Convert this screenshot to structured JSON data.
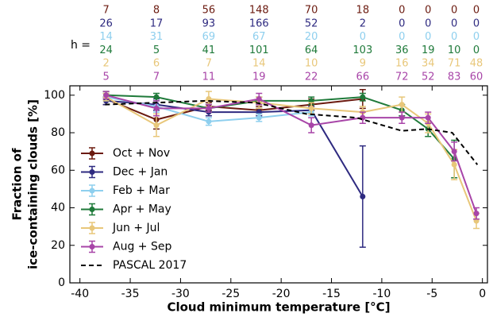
{
  "chart_data": {
    "type": "line",
    "x_label": "Cloud minimum temperature [°C]",
    "y_label": [
      "Fraction of",
      "ice-containing clouds [%]"
    ],
    "counts_label": "h =",
    "x": [
      -37.4,
      -32.4,
      -27.2,
      -22.2,
      -17,
      -11.9,
      -8,
      -5.4,
      -2.8,
      -0.6
    ],
    "xlim": [
      -41,
      0.5
    ],
    "xticks": [
      -40,
      -35,
      -30,
      -25,
      -20,
      -15,
      -10,
      -5,
      0
    ],
    "ylim": [
      0,
      105
    ],
    "yticks": [
      0,
      20,
      40,
      60,
      80,
      100
    ],
    "legend": "lower left",
    "series": [
      {
        "name": "Oct + Nov",
        "color": "#6b1a0f",
        "values": [
          98,
          87,
          94,
          92,
          95,
          98,
          null,
          null,
          null,
          null
        ],
        "errors": [
          3,
          5,
          2,
          2,
          3,
          5,
          null,
          null,
          null,
          null
        ],
        "counts": [
          7,
          8,
          56,
          148,
          70,
          18,
          0,
          0,
          0,
          0
        ]
      },
      {
        "name": "Dec + Jan",
        "color": "#2e2a80",
        "values": [
          97,
          95,
          91,
          91,
          92,
          46,
          null,
          null,
          null,
          null
        ],
        "errors": [
          2,
          3,
          2,
          2,
          2,
          27,
          null,
          null,
          null,
          null
        ],
        "counts": [
          26,
          17,
          93,
          166,
          52,
          2,
          0,
          0,
          0,
          0
        ]
      },
      {
        "name": "Feb + Mar",
        "color": "#8ecfee",
        "values": [
          99,
          94,
          86,
          88,
          91,
          null,
          null,
          null,
          null,
          null
        ],
        "errors": [
          2,
          3,
          2,
          2,
          2,
          null,
          null,
          null,
          null,
          null
        ],
        "counts": [
          14,
          31,
          69,
          67,
          20,
          0,
          0,
          0,
          0,
          0
        ]
      },
      {
        "name": "Apr + May",
        "color": "#1f7a3a",
        "values": [
          100,
          99,
          93,
          97,
          97,
          99,
          92,
          82,
          66,
          null
        ],
        "errors": [
          2,
          2,
          2,
          2,
          2,
          2,
          3,
          4,
          10,
          null
        ],
        "counts": [
          24,
          5,
          41,
          101,
          64,
          103,
          36,
          19,
          10,
          0
        ]
      },
      {
        "name": "Jun + Jul",
        "color": "#e8c77a",
        "values": [
          99,
          84,
          98,
          96,
          93,
          91,
          95,
          85,
          63,
          33
        ],
        "errors": [
          2,
          6,
          4,
          3,
          3,
          3,
          4,
          5,
          8,
          4
        ],
        "counts": [
          2,
          6,
          7,
          14,
          10,
          9,
          16,
          34,
          71,
          48
        ]
      },
      {
        "name": "Aug + Sep",
        "color": "#a845a8",
        "values": [
          100,
          93,
          93,
          98,
          84,
          88,
          88,
          88,
          70,
          37
        ],
        "errors": [
          2,
          4,
          2,
          3,
          4,
          3,
          3,
          3,
          5,
          3
        ],
        "counts": [
          5,
          7,
          11,
          19,
          22,
          66,
          72,
          52,
          83,
          60
        ]
      },
      {
        "name": "PASCAL 2017",
        "color": "#000000",
        "style": "dashed",
        "x": [
          -37.5,
          -27.5,
          -22.5,
          -17.5,
          -12.5,
          -8,
          -5.5,
          -3,
          -0.5
        ],
        "values": [
          95,
          97,
          96,
          90,
          88,
          81,
          82,
          80,
          63
        ]
      }
    ]
  }
}
